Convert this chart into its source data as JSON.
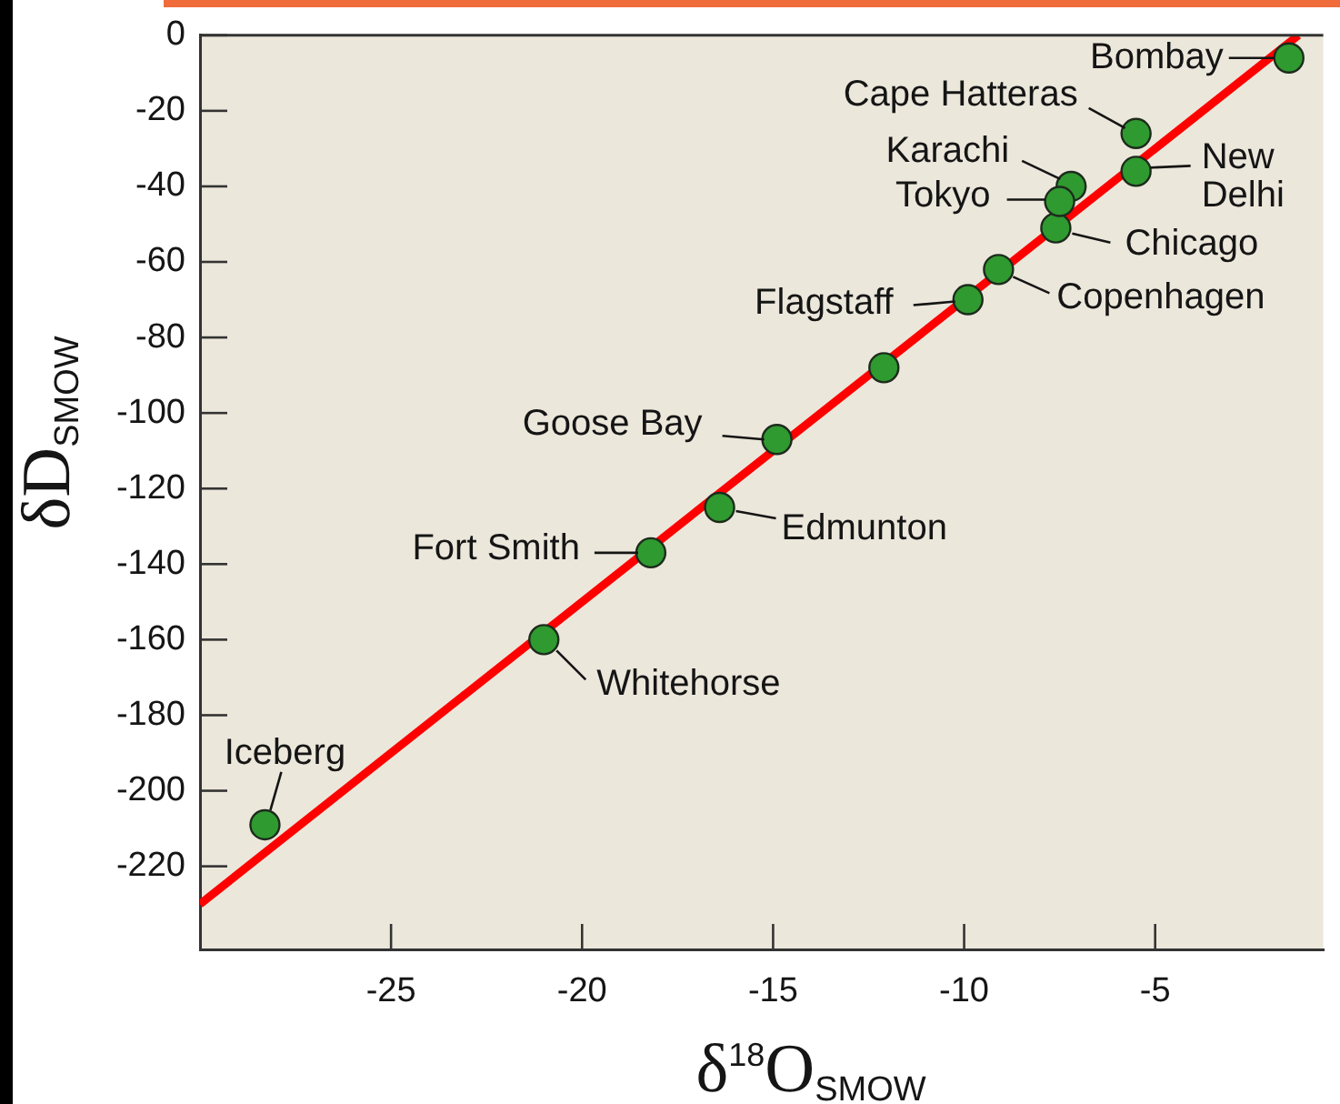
{
  "chart_data": {
    "type": "scatter",
    "xlabel": "δ$^{18}$O$_{SMOW}$",
    "ylabel": "δD$_{SMOW}$",
    "marker": "circle",
    "series": [
      {
        "color": "#2f9a2f",
        "x": [
          -28.3,
          -21,
          -18.2,
          -16.4,
          -14.9,
          -12.1,
          -9.9,
          -9.1,
          -7.6,
          -7.2,
          -7.5,
          -5.5,
          -5.5,
          -1.5
        ],
        "values": [
          -209,
          -160,
          -137,
          -125,
          -107,
          -88,
          -70,
          -62,
          -51,
          -40,
          -44,
          -36,
          -26,
          -6
        ]
      },
      {
        "type": "line",
        "color": "#ff0000",
        "marker": "none",
        "x": [
          -30,
          -1.25
        ],
        "values": [
          -230,
          0
        ]
      }
    ],
    "xlim": [
      -30,
      -0.6
    ],
    "xticks": [
      -25,
      -20,
      -15,
      -10,
      -5
    ],
    "ylim": [
      -242,
      0
    ],
    "yticks": [
      0,
      -20,
      -40,
      -60,
      -80,
      -100,
      -120,
      -140,
      -160,
      -180,
      -200,
      -220
    ],
    "annotations": [
      {
        "text": "Bombay",
        "x": -1.5,
        "y": -6
      },
      {
        "text": "Cape Hatteras",
        "x": -5.5,
        "y": -26
      },
      {
        "text": "New Delhi",
        "x": -5.5,
        "y": -36
      },
      {
        "text": "Karachi",
        "x": -7.2,
        "y": -40
      },
      {
        "text": "Tokyo",
        "x": -7.5,
        "y": -44
      },
      {
        "text": "Chicago",
        "x": -7.6,
        "y": -51
      },
      {
        "text": "Copenhagen",
        "x": -9.1,
        "y": -62
      },
      {
        "text": "Flagstaff",
        "x": -9.9,
        "y": -70
      },
      {
        "text": "Goose Bay",
        "x": -14.9,
        "y": -107
      },
      {
        "text": "Edmunton",
        "x": -16.4,
        "y": -125
      },
      {
        "text": "Fort Smith",
        "x": -18.2,
        "y": -137
      },
      {
        "text": "Whitehorse",
        "x": -21,
        "y": -160
      },
      {
        "text": "Iceberg",
        "x": -28.3,
        "y": -209
      }
    ]
  }
}
